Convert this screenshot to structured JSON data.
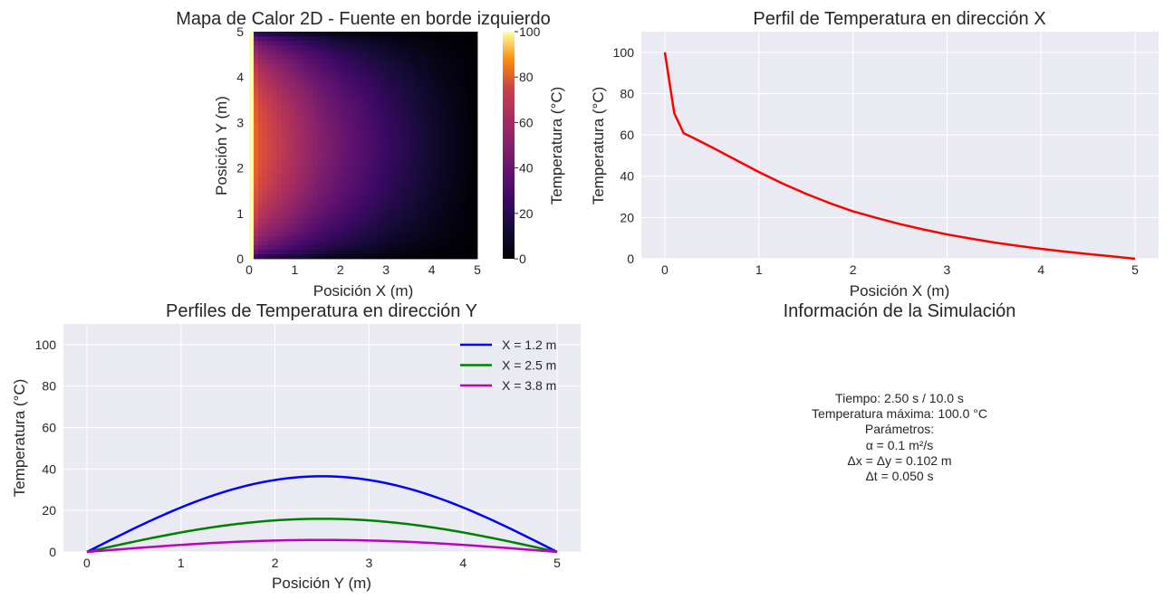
{
  "chart_data": [
    {
      "type": "heatmap",
      "title": "Mapa de Calor 2D - Fuente en borde izquierdo",
      "xlabel": "Posición X (m)",
      "ylabel": "Posición Y (m)",
      "xlim": [
        0,
        5
      ],
      "ylim": [
        0,
        5
      ],
      "x_ticks": [
        "0",
        "1",
        "2",
        "3",
        "4",
        "5"
      ],
      "y_ticks": [
        "0",
        "1",
        "2",
        "3",
        "4",
        "5"
      ],
      "colormap": "inferno",
      "colorbar": {
        "label": "Temperatura (°C)",
        "range": [
          0,
          100
        ],
        "ticks": [
          "0",
          "20",
          "40",
          "60",
          "80",
          "100"
        ]
      },
      "grid": {
        "nx": 50,
        "ny": 50
      },
      "source_temperature": 100.0,
      "temperature_at_y_center_by_x": {
        "x": [
          0,
          0.1,
          0.2,
          0.3,
          0.5,
          1,
          1.5,
          2,
          2.5,
          3,
          3.5,
          4,
          4.5,
          5
        ],
        "t": [
          100,
          71,
          61,
          59,
          55,
          46,
          37,
          30,
          24,
          18,
          13,
          8,
          4,
          0
        ]
      },
      "grid_on": false
    },
    {
      "type": "line",
      "title": "Perfil de Temperatura en dirección X",
      "xlabel": "Posición X (m)",
      "ylabel": "Temperatura (°C)",
      "xlim": [
        -0.25,
        5.25
      ],
      "ylim": [
        0,
        110
      ],
      "x_ticks": [
        "0",
        "1",
        "2",
        "3",
        "4",
        "5"
      ],
      "y_ticks": [
        "0",
        "20",
        "40",
        "60",
        "80",
        "100"
      ],
      "series": [
        {
          "color": "#ff0000",
          "x": [
            0,
            0.1,
            0.2,
            0.3,
            0.5,
            0.75,
            1,
            1.25,
            1.5,
            1.75,
            2,
            2.25,
            2.5,
            2.75,
            3,
            3.25,
            3.5,
            3.75,
            4,
            4.25,
            4.5,
            4.75,
            5
          ],
          "y": [
            100,
            70.5,
            60.8,
            58.6,
            54.0,
            48.0,
            42.0,
            36.5,
            31.5,
            27.0,
            23.0,
            19.8,
            16.8,
            14.2,
            11.8,
            9.8,
            7.9,
            6.3,
            4.8,
            3.5,
            2.3,
            1.2,
            0
          ]
        }
      ],
      "grid_on": true
    },
    {
      "type": "line",
      "title": "Perfiles de Temperatura en dirección Y",
      "xlabel": "Posición Y (m)",
      "ylabel": "Temperatura (°C)",
      "xlim": [
        -0.25,
        5.25
      ],
      "ylim": [
        0,
        110
      ],
      "x_ticks": [
        "0",
        "1",
        "2",
        "3",
        "4",
        "5"
      ],
      "y_ticks": [
        "0",
        "20",
        "40",
        "60",
        "80",
        "100"
      ],
      "legend": "top-right",
      "series": [
        {
          "name": "X = 1.2 m",
          "color": "#0000ff",
          "peak": 36.5
        },
        {
          "name": "X = 2.5 m",
          "color": "#008000",
          "peak": 16.0
        },
        {
          "name": "X = 3.8 m",
          "color": "#bf00bf",
          "peak": 5.8
        }
      ],
      "series_shape": "sin(pi*y/5)",
      "grid_on": true
    }
  ],
  "info_panel": {
    "title": "Información de la Simulación",
    "lines": [
      "Tiempo: 2.50 s / 10.0 s",
      "Temperatura máxima: 100.0 °C",
      "Parámetros:",
      "α = 0.1 m²/s",
      "Δx = Δy = 0.102 m",
      "Δt = 0.050 s"
    ]
  }
}
